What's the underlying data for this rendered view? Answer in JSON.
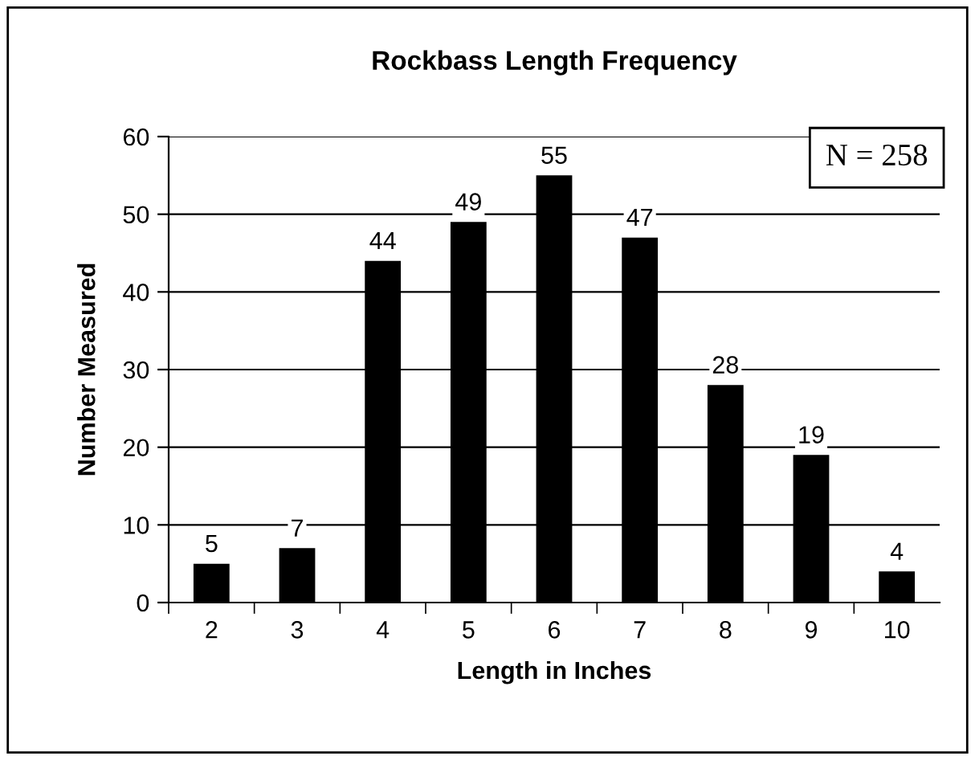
{
  "chart_data": {
    "type": "bar",
    "title": "Rockbass Length Frequency",
    "xlabel": "Length in Inches",
    "ylabel": "Number Measured",
    "categories": [
      "2",
      "3",
      "4",
      "5",
      "6",
      "7",
      "8",
      "9",
      "10"
    ],
    "values": [
      5,
      7,
      44,
      49,
      55,
      47,
      28,
      19,
      4
    ],
    "color": "#000000",
    "ylim": [
      0,
      60
    ],
    "yticks": [
      0,
      10,
      20,
      30,
      40,
      50,
      60
    ],
    "grid": "y",
    "data_labels": true,
    "annotations": [
      "N = 258"
    ]
  }
}
